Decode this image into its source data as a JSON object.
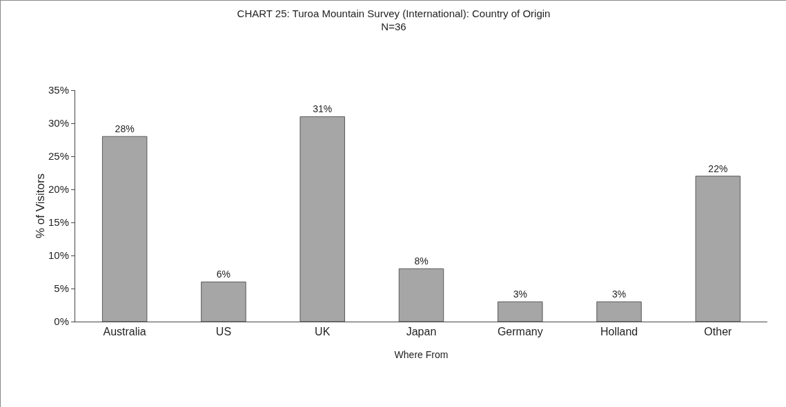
{
  "chart_data": {
    "type": "bar",
    "title": "CHART 25: Turoa Mountain Survey (International): Country of Origin",
    "subtitle": "N=36",
    "xlabel": "Where From",
    "ylabel": "% of Visitors",
    "categories": [
      "Australia",
      "US",
      "UK",
      "Japan",
      "Germany",
      "Holland",
      "Other"
    ],
    "values": [
      28,
      6,
      31,
      8,
      3,
      3,
      22
    ],
    "value_labels": [
      "28%",
      "6%",
      "31%",
      "8%",
      "3%",
      "3%",
      "22%"
    ],
    "color": "#a6a6a6",
    "ylim": [
      0,
      35
    ],
    "yticks": [
      {
        "value": 0,
        "label": "0%"
      },
      {
        "value": 5,
        "label": "5%"
      },
      {
        "value": 10,
        "label": "10%"
      },
      {
        "value": 15,
        "label": "15%"
      },
      {
        "value": 20,
        "label": "20%"
      },
      {
        "value": 25,
        "label": "25%"
      },
      {
        "value": 30,
        "label": "30%"
      },
      {
        "value": 35,
        "label": "35%"
      }
    ],
    "grid": false
  }
}
